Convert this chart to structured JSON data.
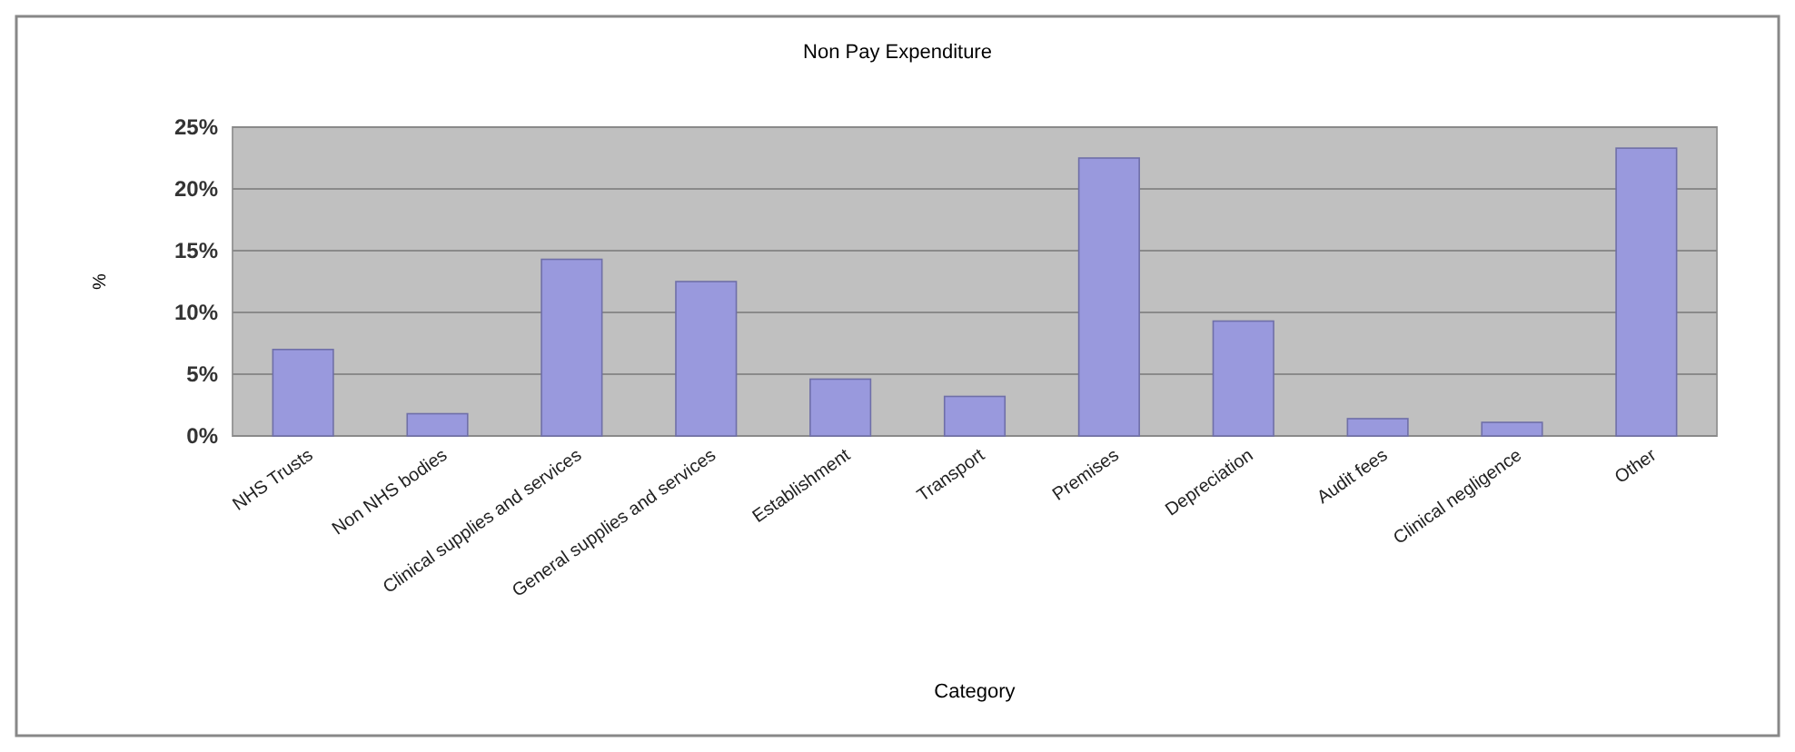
{
  "chart_data": {
    "type": "bar",
    "title": "Non Pay Expenditure",
    "xlabel": "Category",
    "ylabel": "%",
    "categories": [
      "NHS Trusts",
      "Non NHS bodies",
      "Clinical supplies and services",
      "General supplies and services",
      "Establishment",
      "Transport",
      "Premises",
      "Depreciation",
      "Audit fees",
      "Clinical negligence",
      "Other"
    ],
    "values": [
      7.0,
      1.8,
      14.3,
      12.5,
      4.6,
      3.2,
      22.5,
      9.3,
      1.4,
      1.1,
      23.3
    ],
    "color": "#9999dd",
    "ylim": [
      0,
      25
    ],
    "yticks": [
      {
        "value": 0,
        "label": "0%"
      },
      {
        "value": 5,
        "label": "5%"
      },
      {
        "value": 10,
        "label": "10%"
      },
      {
        "value": 15,
        "label": "15%"
      },
      {
        "value": 20,
        "label": "20%"
      },
      {
        "value": 25,
        "label": "25%"
      }
    ],
    "grid": "y"
  }
}
